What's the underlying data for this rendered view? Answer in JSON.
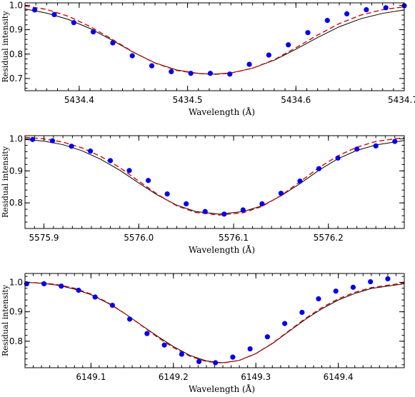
{
  "chart_data": [
    {
      "type": "scatter",
      "title": "",
      "xlabel": "Wavelength (Å)",
      "ylabel": "Residual intensity",
      "xlim": [
        5434.35,
        5434.7
      ],
      "ylim": [
        0.65,
        1.01
      ],
      "xticks": [
        5434.4,
        5434.5,
        5434.6,
        5434.7
      ],
      "xtick_labels": [
        "5434.4",
        "5434.5",
        "5434.6",
        "5434.7"
      ],
      "yticks": [
        0.7,
        0.8,
        0.9,
        1.0
      ],
      "ytick_labels": [
        "0.7",
        "0.8",
        "0.9",
        "1.0"
      ],
      "grid": false,
      "series": [
        {
          "kind": "points",
          "color": "#0000ee",
          "x": [
            5434.359,
            5434.377,
            5434.395,
            5434.413,
            5434.431,
            5434.449,
            5434.467,
            5434.485,
            5434.503,
            5434.521,
            5434.539,
            5434.557,
            5434.575,
            5434.593,
            5434.611,
            5434.629,
            5434.647,
            5434.665,
            5434.683,
            5434.7
          ],
          "y": [
            0.981,
            0.962,
            0.929,
            0.891,
            0.846,
            0.793,
            0.752,
            0.728,
            0.721,
            0.721,
            0.718,
            0.758,
            0.796,
            0.838,
            0.888,
            0.938,
            0.965,
            0.982,
            0.99,
            0.998
          ]
        },
        {
          "kind": "line",
          "style": "solid",
          "color": "#000000",
          "x": [
            5434.35,
            5434.37,
            5434.39,
            5434.41,
            5434.43,
            5434.45,
            5434.47,
            5434.49,
            5434.51,
            5434.524,
            5434.54,
            5434.56,
            5434.58,
            5434.6,
            5434.62,
            5434.64,
            5434.66,
            5434.68,
            5434.7
          ],
          "y": [
            0.985,
            0.968,
            0.942,
            0.905,
            0.858,
            0.807,
            0.764,
            0.735,
            0.721,
            0.718,
            0.723,
            0.742,
            0.775,
            0.82,
            0.868,
            0.912,
            0.945,
            0.967,
            0.981
          ]
        },
        {
          "kind": "line",
          "style": "dashed",
          "color": "#dd0000",
          "x": [
            5434.35,
            5434.37,
            5434.39,
            5434.41,
            5434.43,
            5434.45,
            5434.47,
            5434.49,
            5434.51,
            5434.526,
            5434.54,
            5434.56,
            5434.58,
            5434.6,
            5434.62,
            5434.64,
            5434.66,
            5434.68,
            5434.7
          ],
          "y": [
            0.997,
            0.983,
            0.955,
            0.913,
            0.862,
            0.808,
            0.763,
            0.733,
            0.72,
            0.717,
            0.722,
            0.742,
            0.777,
            0.826,
            0.878,
            0.925,
            0.96,
            0.982,
            0.994
          ]
        }
      ]
    },
    {
      "type": "scatter",
      "title": "",
      "xlabel": "Wavelength (Å)",
      "ylabel": "Residual intensity",
      "xlim": [
        5575.88,
        5576.28
      ],
      "ylim": [
        0.72,
        1.01
      ],
      "xticks": [
        5575.9,
        5576.0,
        5576.1,
        5576.2
      ],
      "xtick_labels": [
        "5575.9",
        "5576.0",
        "5576.1",
        "5576.2"
      ],
      "yticks": [
        0.8,
        0.9,
        1.0
      ],
      "ytick_labels": [
        "0.8",
        "0.9",
        "1.0"
      ],
      "grid": false,
      "series": [
        {
          "kind": "points",
          "color": "#0000ee",
          "x": [
            5575.888,
            5575.909,
            5575.929,
            5575.949,
            5575.97,
            5575.99,
            5576.01,
            5576.03,
            5576.05,
            5576.07,
            5576.09,
            5576.11,
            5576.13,
            5576.15,
            5576.17,
            5576.19,
            5576.21,
            5576.23,
            5576.25,
            5576.27
          ],
          "y": [
            0.998,
            0.994,
            0.977,
            0.962,
            0.932,
            0.901,
            0.87,
            0.828,
            0.797,
            0.773,
            0.765,
            0.778,
            0.797,
            0.83,
            0.868,
            0.907,
            0.94,
            0.968,
            0.978,
            0.992
          ]
        },
        {
          "kind": "line",
          "style": "solid",
          "color": "#000000",
          "x": [
            5575.88,
            5575.9,
            5575.92,
            5575.94,
            5575.96,
            5575.98,
            5576.0,
            5576.02,
            5576.04,
            5576.06,
            5576.085,
            5576.11,
            5576.13,
            5576.15,
            5576.17,
            5576.19,
            5576.21,
            5576.23,
            5576.25,
            5576.28
          ],
          "y": [
            0.998,
            0.993,
            0.982,
            0.963,
            0.936,
            0.902,
            0.862,
            0.824,
            0.793,
            0.773,
            0.765,
            0.773,
            0.791,
            0.822,
            0.86,
            0.902,
            0.938,
            0.964,
            0.981,
            0.995
          ]
        },
        {
          "kind": "line",
          "style": "dashed",
          "color": "#dd0000",
          "x": [
            5575.88,
            5575.9,
            5575.92,
            5575.94,
            5575.96,
            5575.98,
            5576.0,
            5576.02,
            5576.04,
            5576.06,
            5576.085,
            5576.11,
            5576.13,
            5576.15,
            5576.17,
            5576.19,
            5576.21,
            5576.23,
            5576.25,
            5576.28
          ],
          "y": [
            1.005,
            1.0,
            0.99,
            0.972,
            0.945,
            0.91,
            0.868,
            0.826,
            0.791,
            0.77,
            0.762,
            0.769,
            0.789,
            0.823,
            0.866,
            0.91,
            0.947,
            0.974,
            0.992,
            1.004
          ]
        }
      ]
    },
    {
      "type": "scatter",
      "title": "",
      "xlabel": "Wavelength (Å)",
      "ylabel": "Residual intensity",
      "xlim": [
        6149.02,
        6149.48
      ],
      "ylim": [
        0.71,
        1.03
      ],
      "xticks": [
        6149.1,
        6149.2,
        6149.3,
        6149.4
      ],
      "xtick_labels": [
        "6149.1",
        "6149.2",
        "6149.3",
        "6149.4"
      ],
      "yticks": [
        0.8,
        0.9,
        1.0
      ],
      "ytick_labels": [
        "0.8",
        "0.9",
        "1.0"
      ],
      "grid": false,
      "series": [
        {
          "kind": "points",
          "color": "#0000ee",
          "x": [
            6149.022,
            6149.043,
            6149.064,
            6149.085,
            6149.105,
            6149.126,
            6149.147,
            6149.168,
            6149.189,
            6149.21,
            6149.231,
            6149.251,
            6149.272,
            6149.293,
            6149.314,
            6149.335,
            6149.356,
            6149.376,
            6149.397,
            6149.418,
            6149.439,
            6149.46
          ],
          "y": [
            0.995,
            0.995,
            0.987,
            0.973,
            0.95,
            0.922,
            0.875,
            0.826,
            0.787,
            0.756,
            0.731,
            0.727,
            0.746,
            0.774,
            0.815,
            0.86,
            0.898,
            0.944,
            0.97,
            0.983,
            1.002,
            1.012
          ]
        },
        {
          "kind": "line",
          "style": "solid",
          "color": "#000000",
          "x": [
            6149.02,
            6149.04,
            6149.06,
            6149.08,
            6149.1,
            6149.12,
            6149.14,
            6149.16,
            6149.18,
            6149.2,
            6149.22,
            6149.24,
            6149.26,
            6149.28,
            6149.3,
            6149.32,
            6149.34,
            6149.36,
            6149.38,
            6149.4,
            6149.42,
            6149.44,
            6149.48
          ],
          "y": [
            1.0,
            0.997,
            0.99,
            0.977,
            0.958,
            0.93,
            0.896,
            0.857,
            0.818,
            0.782,
            0.752,
            0.733,
            0.727,
            0.735,
            0.758,
            0.792,
            0.833,
            0.874,
            0.91,
            0.94,
            0.962,
            0.979,
            0.995
          ]
        },
        {
          "kind": "line",
          "style": "dashed",
          "color": "#dd0000",
          "x": [
            6149.02,
            6149.04,
            6149.06,
            6149.08,
            6149.1,
            6149.12,
            6149.14,
            6149.16,
            6149.18,
            6149.2,
            6149.22,
            6149.24,
            6149.26,
            6149.28,
            6149.3,
            6149.32,
            6149.34,
            6149.36,
            6149.38,
            6149.4,
            6149.42,
            6149.44,
            6149.48
          ],
          "y": [
            1.0,
            0.998,
            0.992,
            0.98,
            0.96,
            0.932,
            0.896,
            0.856,
            0.815,
            0.778,
            0.749,
            0.731,
            0.726,
            0.735,
            0.758,
            0.793,
            0.835,
            0.877,
            0.914,
            0.944,
            0.966,
            0.982,
            0.998
          ]
        }
      ]
    }
  ]
}
